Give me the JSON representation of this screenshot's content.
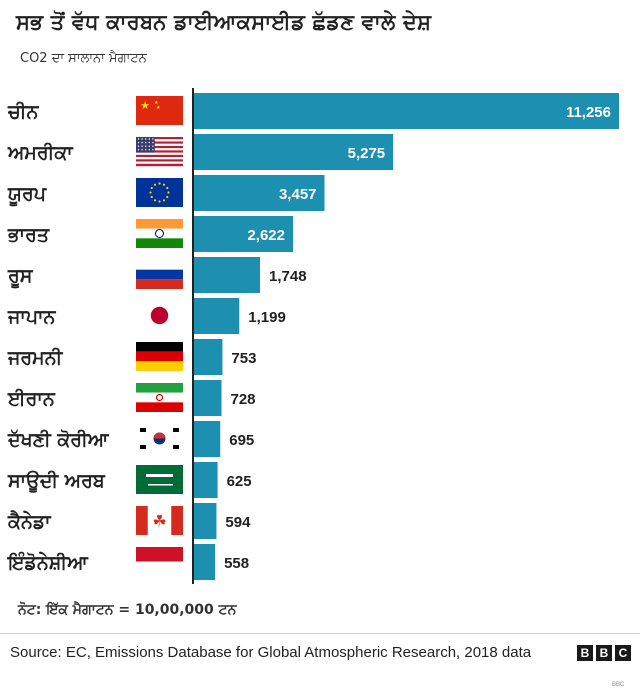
{
  "title": "ਸਭ ਤੋਂ ਵੱਧ ਕਾਰਬਨ ਡਾਈਆਕਸਾਈਡ ਛੱਡਣ ਵਾਲੇ ਦੇਸ਼",
  "subtitle": "CO2  ਦਾ ਸਾਲਾਨਾ ਮੈਗਾਟਨ",
  "note": "ਨੋਟ: ਇੱਕ ਮੈਗਾਟਨ = 10,00,000 ਟਨ",
  "source": "Source: EC, Emissions Database for Global Atmospheric Research, 2018 data",
  "logo": {
    "letters": [
      "B",
      "B",
      "C"
    ],
    "text": "BBC"
  },
  "colors": {
    "bar": "#1d8fb0",
    "axis": "#222222",
    "label_inside": "#ffffff",
    "label_outside": "#222222"
  },
  "chart_data": {
    "type": "bar",
    "orientation": "horizontal",
    "categories": [
      "ਚੀਨ",
      "ਅਮਰੀਕਾ",
      "ਯੂਰਪ",
      "ਭਾਰਤ",
      "ਰੂਸ",
      "ਜਾਪਾਨ",
      "ਜਰਮਨੀ",
      "ਈਰਾਨ",
      "ਦੱਖਣੀ ਕੋਰੀਆ",
      "ਸਾਊਦੀ ਅਰਬ",
      "ਕੈਨੇਡਾ",
      "ਇੰਡੋਨੇਸ਼ੀਆ"
    ],
    "flags": [
      "china-flag",
      "usa-flag",
      "eu-flag",
      "india-flag",
      "russia-flag",
      "japan-flag",
      "germany-flag",
      "iran-flag",
      "south-korea-flag",
      "saudi-arabia-flag",
      "canada-flag",
      "indonesia-flag"
    ],
    "values": [
      11256,
      5275,
      3457,
      2622,
      1748,
      1199,
      753,
      728,
      695,
      625,
      594,
      558
    ],
    "value_labels": [
      "11,256",
      "5,275",
      "3,457",
      "2,622",
      "1,748",
      "1,199",
      "753",
      "728",
      "695",
      "625",
      "594",
      "558"
    ],
    "xlim": [
      0,
      11256
    ],
    "grid": false
  }
}
